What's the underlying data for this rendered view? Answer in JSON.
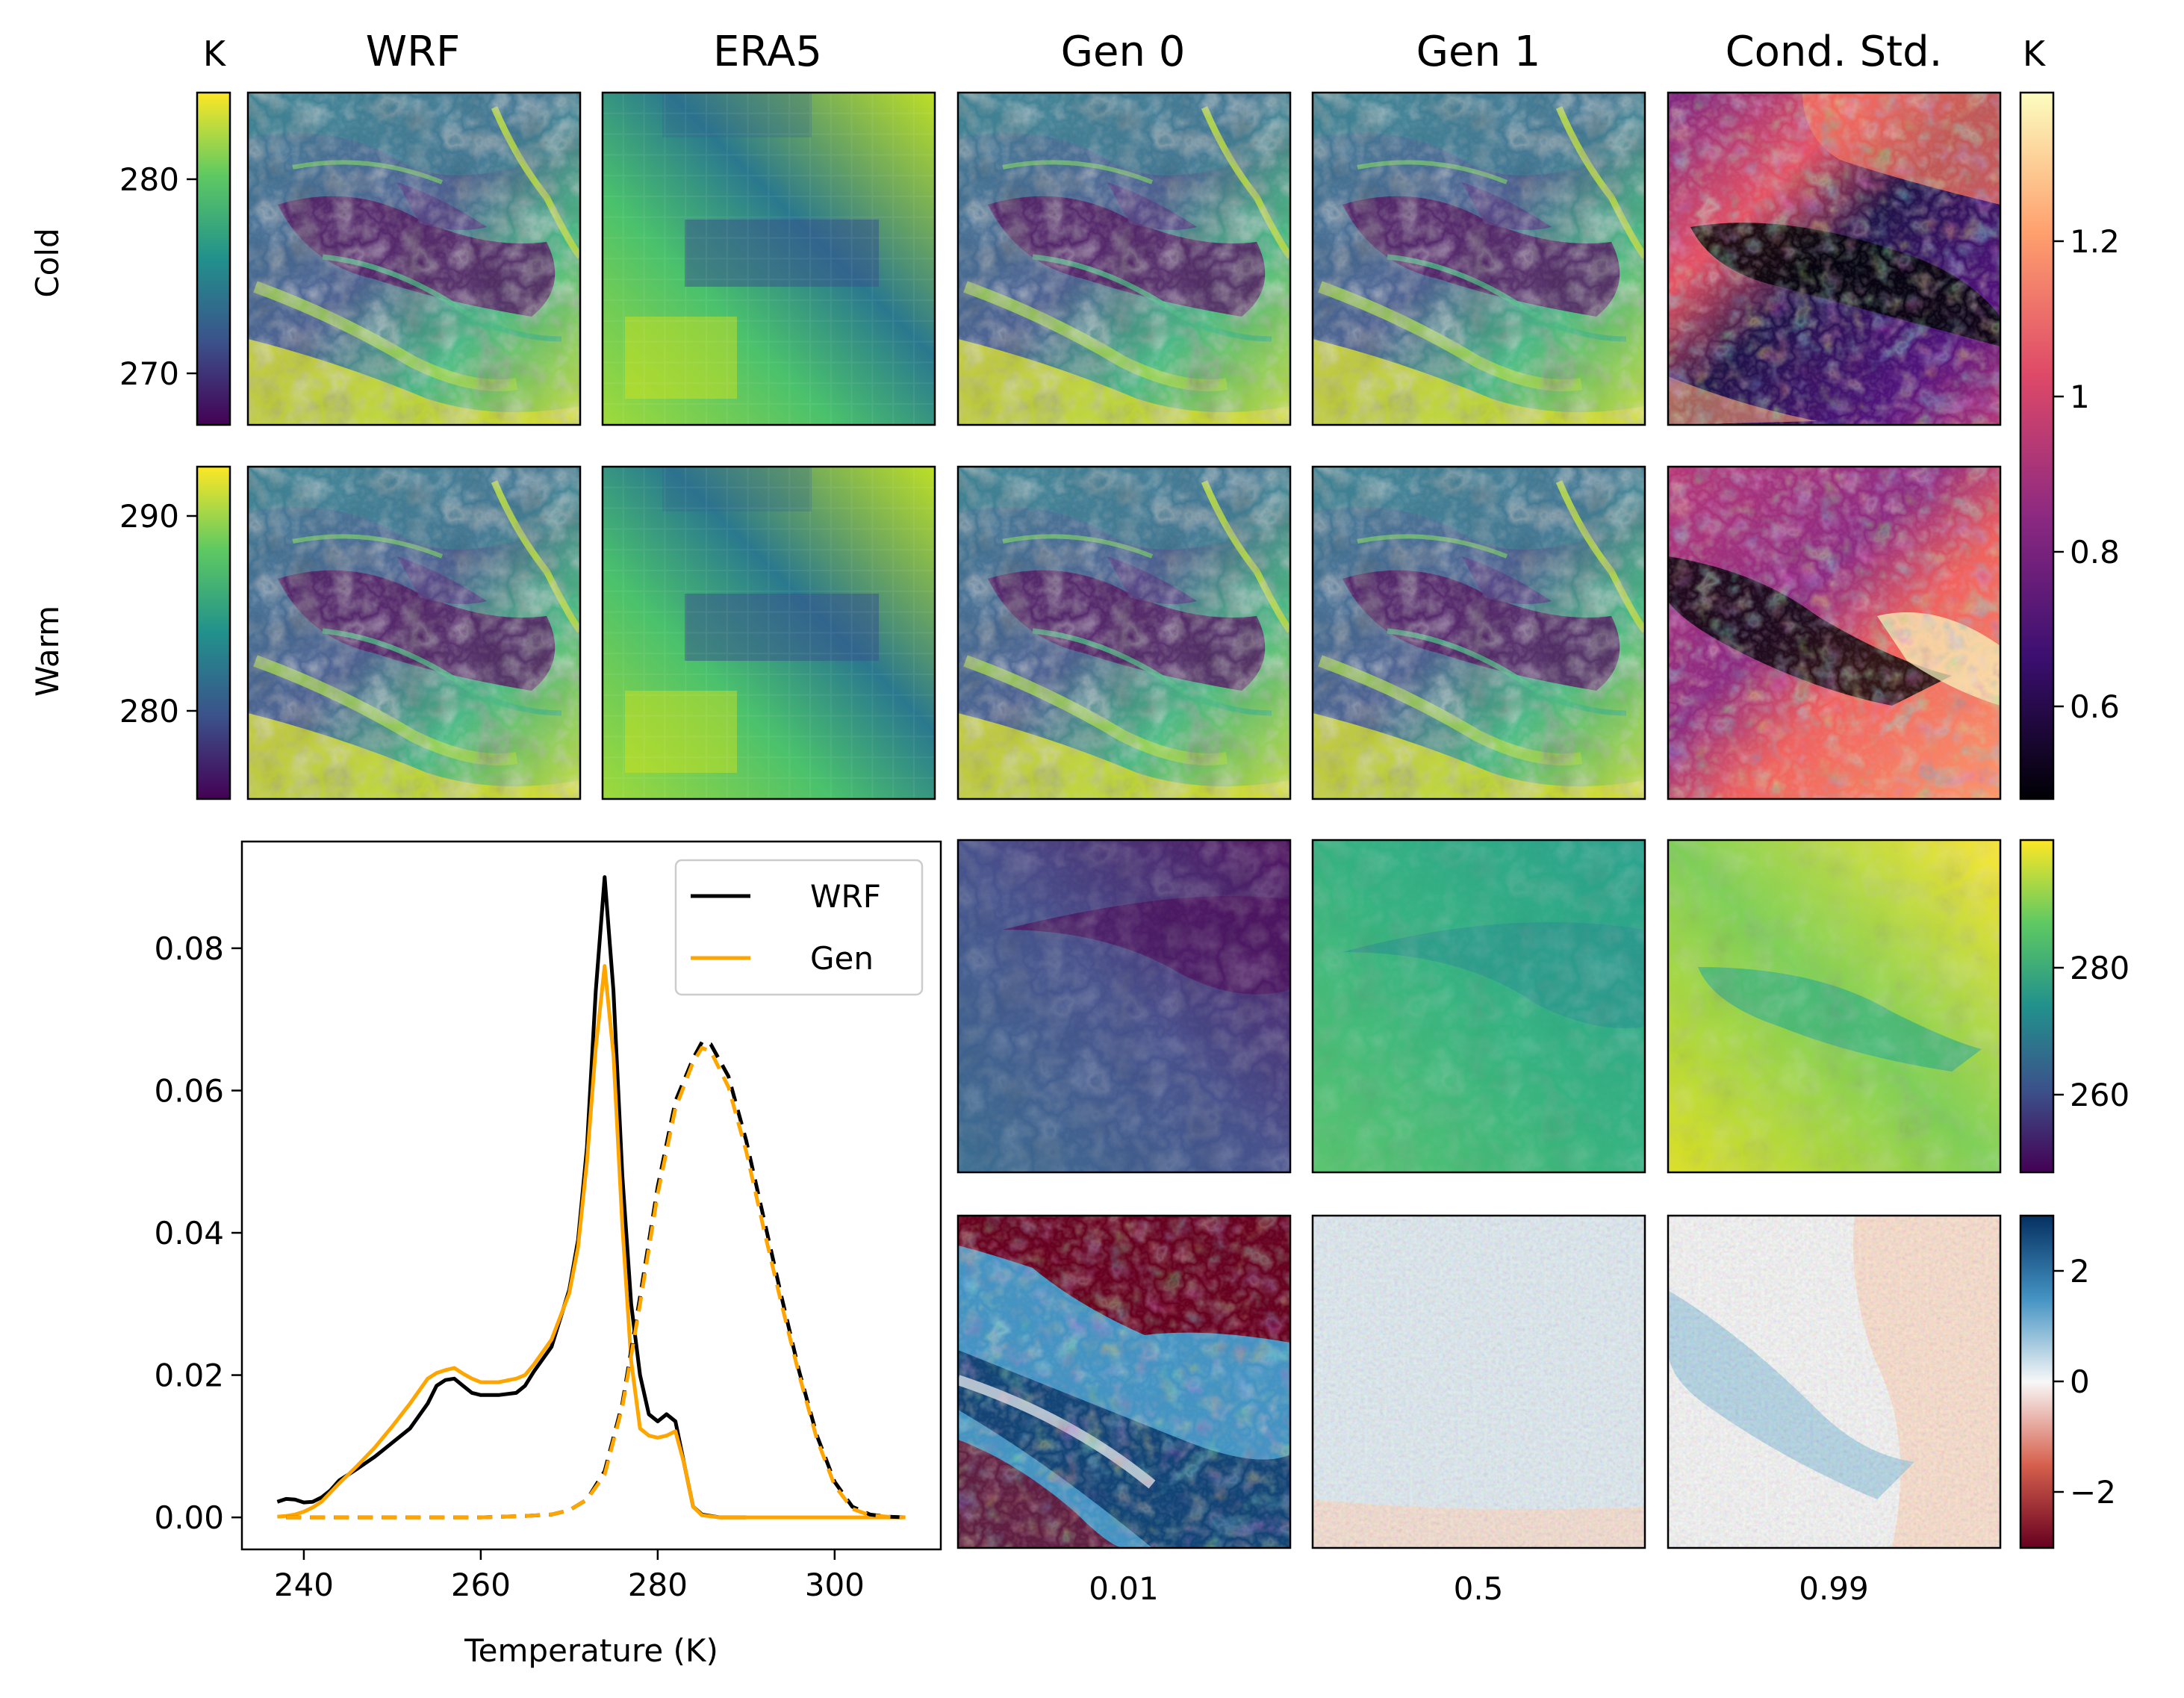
{
  "column_titles": [
    "WRF",
    "ERA5",
    "Gen 0",
    "Gen 1",
    "Cond. Std."
  ],
  "row_labels": [
    "Cold",
    "Warm"
  ],
  "unit_left": "K",
  "unit_right": "K",
  "colorbars": {
    "cold_temperature": {
      "colormap": "viridis",
      "ticks": [
        280,
        270
      ],
      "range": [
        267.5,
        284.5
      ]
    },
    "warm_temperature": {
      "colormap": "viridis",
      "ticks": [
        290,
        280
      ],
      "range": [
        275.5,
        292.5
      ]
    },
    "cond_std": {
      "colormap": "magma",
      "ticks": [
        1.2,
        1.0,
        0.8,
        0.6
      ],
      "range": [
        0.47,
        1.38
      ]
    },
    "quantile_temperature": {
      "colormap": "viridis",
      "ticks": [
        280,
        260
      ],
      "range": [
        247,
        299
      ]
    },
    "quantile_residual": {
      "colormap": "RdBu",
      "ticks": [
        "2",
        "0",
        "−2"
      ],
      "range": [
        -3,
        3
      ]
    }
  },
  "quantile_labels": [
    "0.01",
    "0.5",
    "0.99"
  ],
  "colors": {
    "wrf_line": "#000000",
    "gen_line": "#ffa500",
    "viridis": [
      "#440154",
      "#3b528b",
      "#21918c",
      "#5ec962",
      "#fde725"
    ],
    "magma": [
      "#000004",
      "#3b0f70",
      "#8c2981",
      "#de4968",
      "#fe9f6d",
      "#fcfdbf"
    ],
    "rdbu": [
      "#67001f",
      "#d6604d",
      "#f7f7f7",
      "#4393c3",
      "#053061"
    ]
  },
  "chart_data": {
    "type": "line",
    "xlabel": "Temperature (K)",
    "ylabel": "",
    "xlim": [
      233,
      312
    ],
    "ylim": [
      -0.0045,
      0.095
    ],
    "xticks": [
      240,
      260,
      280,
      300
    ],
    "yticks": [
      "0.00",
      "0.02",
      "0.04",
      "0.06",
      "0.08"
    ],
    "legend": {
      "placement": "top-right",
      "entries": [
        "WRF",
        "Gen"
      ]
    },
    "series": [
      {
        "name": "WRF",
        "group": "cold",
        "style": "solid",
        "x": [
          237,
          238,
          239,
          240,
          241,
          242,
          243,
          244,
          245,
          246,
          248,
          250,
          252,
          254,
          255,
          256,
          257,
          258,
          259,
          260,
          262,
          264,
          265,
          266,
          268,
          270,
          271,
          272,
          273,
          274,
          275,
          276,
          277,
          278,
          279,
          280,
          281,
          282,
          283,
          284,
          285,
          287,
          290
        ],
        "y": [
          0.0022,
          0.0026,
          0.0025,
          0.0021,
          0.0022,
          0.0028,
          0.0038,
          0.0052,
          0.006,
          0.0068,
          0.0085,
          0.0105,
          0.0125,
          0.016,
          0.0185,
          0.0193,
          0.0195,
          0.0185,
          0.0175,
          0.0172,
          0.0172,
          0.0175,
          0.0185,
          0.0205,
          0.024,
          0.032,
          0.039,
          0.052,
          0.074,
          0.09,
          0.074,
          0.048,
          0.03,
          0.02,
          0.0145,
          0.0135,
          0.0145,
          0.0135,
          0.0075,
          0.0015,
          0.0004,
          0.0,
          0.0
        ]
      },
      {
        "name": "Gen",
        "group": "cold",
        "style": "solid",
        "x": [
          237,
          238,
          239,
          240,
          241,
          242,
          243,
          244,
          245,
          246,
          248,
          250,
          252,
          254,
          255,
          256,
          257,
          258,
          259,
          260,
          262,
          264,
          265,
          266,
          268,
          270,
          271,
          272,
          273,
          274,
          275,
          276,
          277,
          278,
          279,
          280,
          281,
          282,
          283,
          284,
          285,
          287,
          290,
          300,
          308
        ],
        "y": [
          0.0001,
          0.0002,
          0.0004,
          0.0008,
          0.0014,
          0.0022,
          0.0035,
          0.0048,
          0.006,
          0.0072,
          0.0098,
          0.0128,
          0.016,
          0.0195,
          0.0203,
          0.0207,
          0.021,
          0.0202,
          0.0195,
          0.019,
          0.019,
          0.0195,
          0.02,
          0.0215,
          0.025,
          0.0315,
          0.038,
          0.05,
          0.066,
          0.0775,
          0.065,
          0.041,
          0.022,
          0.0125,
          0.0115,
          0.0112,
          0.0115,
          0.0121,
          0.0075,
          0.0015,
          0.0003,
          0.0,
          0.0,
          0.0,
          0.0
        ]
      },
      {
        "name": "WRF",
        "group": "warm",
        "style": "dashed",
        "x": [
          238,
          250,
          260,
          265,
          268,
          270,
          272,
          274,
          276,
          278,
          280,
          282,
          284,
          285,
          286,
          288,
          290,
          292,
          294,
          296,
          298,
          300,
          302,
          304,
          306,
          308
        ],
        "y": [
          0.0,
          0.0,
          0.0,
          0.0002,
          0.0004,
          0.001,
          0.0025,
          0.0065,
          0.016,
          0.031,
          0.0465,
          0.0585,
          0.0645,
          0.0668,
          0.0665,
          0.062,
          0.053,
          0.042,
          0.031,
          0.0205,
          0.0115,
          0.005,
          0.0015,
          0.0004,
          0.0001,
          0.0
        ]
      },
      {
        "name": "Gen",
        "group": "warm",
        "style": "dashed",
        "x": [
          238,
          250,
          260,
          265,
          268,
          270,
          272,
          274,
          276,
          278,
          280,
          282,
          284,
          285,
          286,
          288,
          290,
          292,
          294,
          296,
          298,
          300,
          302,
          304,
          306,
          308
        ],
        "y": [
          0.0,
          0.0,
          0.0,
          0.0002,
          0.0004,
          0.001,
          0.0025,
          0.006,
          0.0155,
          0.03,
          0.0455,
          0.0575,
          0.064,
          0.066,
          0.0655,
          0.0605,
          0.0515,
          0.0405,
          0.03,
          0.02,
          0.011,
          0.0045,
          0.0012,
          0.0003,
          0.0001,
          0.0
        ]
      }
    ]
  }
}
